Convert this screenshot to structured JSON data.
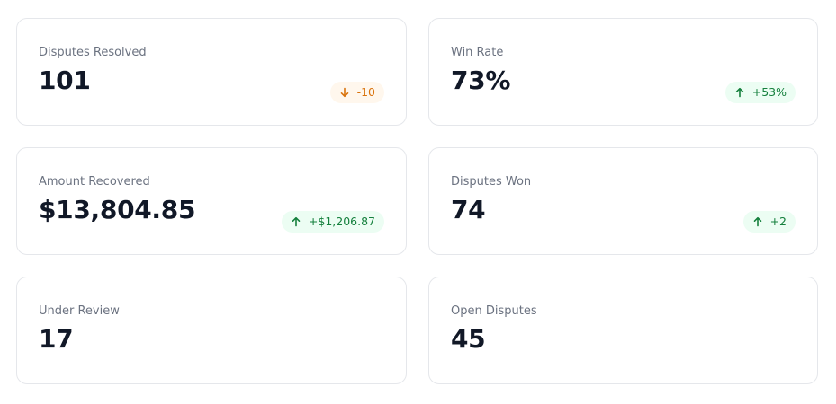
{
  "cards": [
    {
      "label": "Disputes Resolved",
      "value": "101",
      "badge": {
        "text": "-10",
        "direction": "down",
        "color": "#d9730d",
        "background": "#fff7ed"
      }
    },
    {
      "label": "Win Rate",
      "value": "73%",
      "badge": {
        "text": "+53%",
        "direction": "up",
        "color": "#15803d",
        "background": "#ecfdf3"
      }
    },
    {
      "label": "Amount Recovered",
      "value": "$13,804.85",
      "badge": {
        "text": "+$1,206.87",
        "direction": "up",
        "color": "#15803d",
        "background": "#ecfdf3"
      }
    },
    {
      "label": "Disputes Won",
      "value": "74",
      "badge": {
        "text": "+2",
        "direction": "up",
        "color": "#15803d",
        "background": "#ecfdf3"
      }
    },
    {
      "label": "Under Review",
      "value": "17"
    },
    {
      "label": "Open Disputes",
      "value": "45"
    }
  ]
}
